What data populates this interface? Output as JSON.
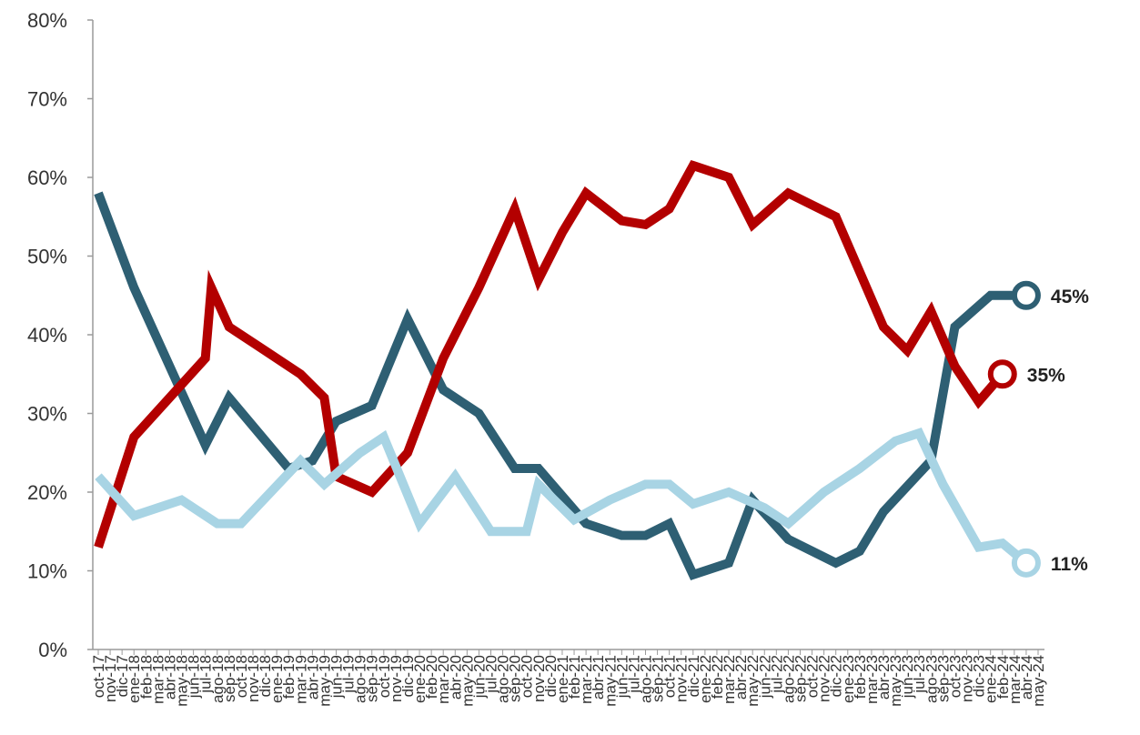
{
  "chart_data": {
    "type": "line",
    "title": "",
    "xlabel": "",
    "ylabel": "",
    "ylim": [
      0,
      80
    ],
    "y_ticks": [
      "0%",
      "10%",
      "20%",
      "30%",
      "40%",
      "50%",
      "60%",
      "70%",
      "80%"
    ],
    "grid": false,
    "legend": "none",
    "categories": [
      "oct-17",
      "nov-17",
      "dic-17",
      "ene-18",
      "feb-18",
      "mar-18",
      "abr-18",
      "may-18",
      "jun-18",
      "jul-18",
      "ago-18",
      "sep-18",
      "oct-18",
      "nov-18",
      "dic-18",
      "ene-19",
      "feb-19",
      "mar-19",
      "abr-19",
      "may-19",
      "jun-19",
      "jul-19",
      "ago-19",
      "sep-19",
      "oct-19",
      "nov-19",
      "dic-19",
      "ene-20",
      "feb-20",
      "mar-20",
      "abr-20",
      "may-20",
      "jun-20",
      "jul-20",
      "ago-20",
      "sep-20",
      "oct-20",
      "nov-20",
      "dic-20",
      "ene-21",
      "feb-21",
      "mar-21",
      "abr-21",
      "may-21",
      "jun-21",
      "jul-21",
      "ago-21",
      "sep-21",
      "oct-21",
      "nov-21",
      "dic-21",
      "ene-22",
      "feb-22",
      "mar-22",
      "abr-22",
      "may-22",
      "jun-22",
      "jul-22",
      "ago-22",
      "sep-22",
      "oct-22",
      "nov-22",
      "dic-22",
      "ene-23",
      "feb-23",
      "mar-23",
      "abr-23",
      "may-23",
      "jun-23",
      "jul-23",
      "ago-23",
      "sep-23",
      "oct-23",
      "nov-23",
      "dic-23",
      "ene-24",
      "feb-24",
      "mar-24",
      "abr-24",
      "may-24"
    ],
    "series": [
      {
        "color": "#2e5f73",
        "end_label": "45%",
        "points": [
          [
            0,
            58
          ],
          [
            3,
            46
          ],
          [
            9,
            26
          ],
          [
            11,
            32
          ],
          [
            16,
            23
          ],
          [
            18,
            24
          ],
          [
            20,
            29
          ],
          [
            23,
            31
          ],
          [
            26,
            42
          ],
          [
            29,
            33
          ],
          [
            32,
            30
          ],
          [
            35,
            23
          ],
          [
            37,
            23
          ],
          [
            41,
            16
          ],
          [
            44,
            14.5
          ],
          [
            46,
            14.5
          ],
          [
            48,
            16
          ],
          [
            50,
            9.5
          ],
          [
            53,
            11
          ],
          [
            55,
            19
          ],
          [
            58,
            14
          ],
          [
            62,
            11
          ],
          [
            64,
            12.5
          ],
          [
            66,
            17.5
          ],
          [
            70,
            24
          ],
          [
            72,
            41
          ],
          [
            75,
            45
          ],
          [
            78,
            45
          ]
        ]
      },
      {
        "color": "#b30000",
        "end_label": "35%",
        "points": [
          [
            0,
            13
          ],
          [
            3,
            27
          ],
          [
            9,
            37
          ],
          [
            9.5,
            46
          ],
          [
            11,
            41
          ],
          [
            14,
            38
          ],
          [
            17,
            35
          ],
          [
            19,
            32
          ],
          [
            20,
            22
          ],
          [
            23,
            20
          ],
          [
            26,
            25
          ],
          [
            29,
            37
          ],
          [
            32,
            46
          ],
          [
            35,
            56
          ],
          [
            37,
            47
          ],
          [
            39,
            53
          ],
          [
            41,
            58
          ],
          [
            44,
            54.5
          ],
          [
            46,
            54
          ],
          [
            48,
            56
          ],
          [
            50,
            61.5
          ],
          [
            53,
            60
          ],
          [
            55,
            54
          ],
          [
            58,
            58
          ],
          [
            62,
            55
          ],
          [
            64,
            48
          ],
          [
            66,
            41
          ],
          [
            68,
            38
          ],
          [
            70,
            43
          ],
          [
            72,
            36
          ],
          [
            74,
            31.5
          ],
          [
            76,
            35
          ]
        ]
      },
      {
        "color": "#a8d4e4",
        "end_label": "11%",
        "points": [
          [
            0,
            22
          ],
          [
            3,
            17
          ],
          [
            7,
            19
          ],
          [
            10,
            16
          ],
          [
            12,
            16
          ],
          [
            17,
            24
          ],
          [
            19,
            21
          ],
          [
            22,
            25
          ],
          [
            24,
            27
          ],
          [
            27,
            16
          ],
          [
            30,
            22
          ],
          [
            33,
            15
          ],
          [
            36,
            15
          ],
          [
            37,
            21
          ],
          [
            40,
            16.5
          ],
          [
            43,
            19
          ],
          [
            46,
            21
          ],
          [
            48,
            21
          ],
          [
            50,
            18.5
          ],
          [
            53,
            20
          ],
          [
            56,
            18
          ],
          [
            58,
            16
          ],
          [
            61,
            20
          ],
          [
            64,
            23
          ],
          [
            67,
            26.5
          ],
          [
            69,
            27.5
          ],
          [
            71,
            21
          ],
          [
            74,
            13
          ],
          [
            76,
            13.5
          ],
          [
            78,
            11
          ]
        ]
      }
    ]
  }
}
